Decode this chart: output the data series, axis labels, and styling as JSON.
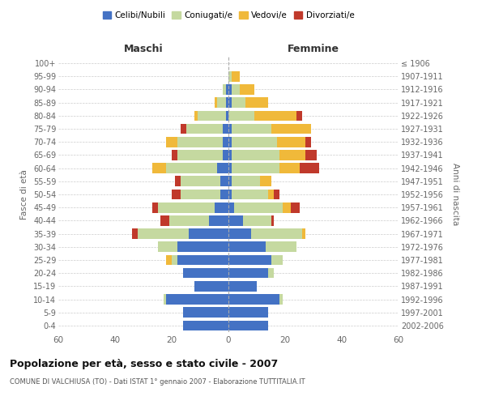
{
  "age_groups": [
    "0-4",
    "5-9",
    "10-14",
    "15-19",
    "20-24",
    "25-29",
    "30-34",
    "35-39",
    "40-44",
    "45-49",
    "50-54",
    "55-59",
    "60-64",
    "65-69",
    "70-74",
    "75-79",
    "80-84",
    "85-89",
    "90-94",
    "95-99",
    "100+"
  ],
  "birth_years": [
    "2002-2006",
    "1997-2001",
    "1992-1996",
    "1987-1991",
    "1982-1986",
    "1977-1981",
    "1972-1976",
    "1967-1971",
    "1962-1966",
    "1957-1961",
    "1952-1956",
    "1947-1951",
    "1942-1946",
    "1937-1941",
    "1932-1936",
    "1927-1931",
    "1922-1926",
    "1917-1921",
    "1912-1916",
    "1907-1911",
    "≤ 1906"
  ],
  "male": {
    "celibi": [
      16,
      16,
      22,
      12,
      16,
      18,
      18,
      14,
      7,
      5,
      3,
      3,
      4,
      2,
      2,
      2,
      1,
      1,
      1,
      0,
      0
    ],
    "coniugati": [
      0,
      0,
      1,
      0,
      0,
      2,
      7,
      18,
      14,
      20,
      14,
      14,
      18,
      16,
      16,
      13,
      10,
      3,
      1,
      0,
      0
    ],
    "vedovi": [
      0,
      0,
      0,
      0,
      0,
      2,
      0,
      0,
      0,
      0,
      0,
      0,
      5,
      0,
      4,
      0,
      1,
      1,
      0,
      0,
      0
    ],
    "divorziati": [
      0,
      0,
      0,
      0,
      0,
      0,
      0,
      2,
      3,
      2,
      3,
      2,
      0,
      2,
      0,
      2,
      0,
      0,
      0,
      0,
      0
    ]
  },
  "female": {
    "nubili": [
      14,
      14,
      18,
      10,
      14,
      15,
      13,
      8,
      5,
      2,
      1,
      1,
      1,
      1,
      1,
      1,
      0,
      1,
      1,
      0,
      0
    ],
    "coniugate": [
      0,
      0,
      1,
      0,
      2,
      4,
      11,
      18,
      10,
      17,
      13,
      10,
      17,
      17,
      16,
      14,
      9,
      5,
      3,
      1,
      0
    ],
    "vedove": [
      0,
      0,
      0,
      0,
      0,
      0,
      0,
      1,
      0,
      3,
      2,
      4,
      7,
      9,
      10,
      14,
      15,
      8,
      5,
      3,
      0
    ],
    "divorziate": [
      0,
      0,
      0,
      0,
      0,
      0,
      0,
      0,
      1,
      3,
      2,
      0,
      7,
      4,
      2,
      0,
      2,
      0,
      0,
      0,
      0
    ]
  },
  "colors": {
    "celibi": "#4472c4",
    "coniugati": "#c5d9a0",
    "vedovi": "#f0b93a",
    "divorziati": "#c0392b"
  },
  "title": "Popolazione per età, sesso e stato civile - 2007",
  "subtitle": "COMUNE DI VALCHIUSA (TO) - Dati ISTAT 1° gennaio 2007 - Elaborazione TUTTITALIA.IT",
  "xlabel_left": "Maschi",
  "xlabel_right": "Femmine",
  "ylabel_left": "Fasce di età",
  "ylabel_right": "Anni di nascita",
  "xlim": 60,
  "legend_labels": [
    "Celibi/Nubili",
    "Coniugati/e",
    "Vedovi/e",
    "Divorziati/e"
  ],
  "bg_color": "#ffffff",
  "grid_color": "#cccccc"
}
